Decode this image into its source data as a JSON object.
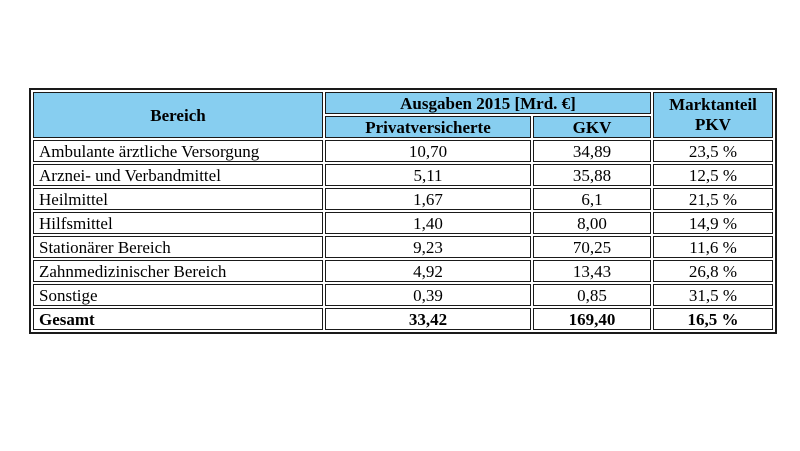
{
  "table": {
    "header": {
      "bereich": "Bereich",
      "ausgaben_group": "Ausgaben 2015 [Mrd. €]",
      "col_privatversicherte": "Privatversicherte",
      "col_gkv": "GKV",
      "marktanteil_line1": "Marktanteil",
      "marktanteil_line2": "PKV"
    },
    "rows": [
      {
        "bereich": "Ambulante ärztliche Versorgung",
        "privatversicherte": "10,70",
        "gkv": "34,89",
        "marktanteil": "23,5 %"
      },
      {
        "bereich": "Arznei- und Verbandmittel",
        "privatversicherte": "5,11",
        "gkv": "35,88",
        "marktanteil": "12,5 %"
      },
      {
        "bereich": "Heilmittel",
        "privatversicherte": "1,67",
        "gkv": "6,1",
        "marktanteil": "21,5 %"
      },
      {
        "bereich": "Hilfsmittel",
        "privatversicherte": "1,40",
        "gkv": "8,00",
        "marktanteil": "14,9 %"
      },
      {
        "bereich": "Stationärer Bereich",
        "privatversicherte": "9,23",
        "gkv": "70,25",
        "marktanteil": "11,6 %"
      },
      {
        "bereich": "Zahnmedizinischer Bereich",
        "privatversicherte": "4,92",
        "gkv": "13,43",
        "marktanteil": "26,8 %"
      },
      {
        "bereich": "Sonstige",
        "privatversicherte": "0,39",
        "gkv": "0,85",
        "marktanteil": "31,5 %"
      }
    ],
    "total": {
      "bereich": "Gesamt",
      "privatversicherte": "33,42",
      "gkv": "169,40",
      "marktanteil": "16,5 %"
    },
    "colors": {
      "header_bg": "#87CEF0",
      "border": "#1a1a1a",
      "text": "#000000",
      "page_bg": "#ffffff"
    }
  },
  "chart_data": {
    "type": "table",
    "title": "",
    "column_group_header": "Ausgaben 2015 [Mrd. €]",
    "columns": [
      "Bereich",
      "Privatversicherte",
      "GKV",
      "Marktanteil PKV"
    ],
    "units": {
      "Privatversicherte": "Mrd. €",
      "GKV": "Mrd. €",
      "Marktanteil PKV": "%"
    },
    "rows": [
      [
        "Ambulante ärztliche Versorgung",
        10.7,
        34.89,
        23.5
      ],
      [
        "Arznei- und Verbandmittel",
        5.11,
        35.88,
        12.5
      ],
      [
        "Heilmittel",
        1.67,
        6.1,
        21.5
      ],
      [
        "Hilfsmittel",
        1.4,
        8.0,
        14.9
      ],
      [
        "Stationärer Bereich",
        9.23,
        70.25,
        11.6
      ],
      [
        "Zahnmedizinischer Bereich",
        4.92,
        13.43,
        26.8
      ],
      [
        "Sonstige",
        0.39,
        0.85,
        31.5
      ],
      [
        "Gesamt",
        33.42,
        169.4,
        16.5
      ]
    ]
  }
}
